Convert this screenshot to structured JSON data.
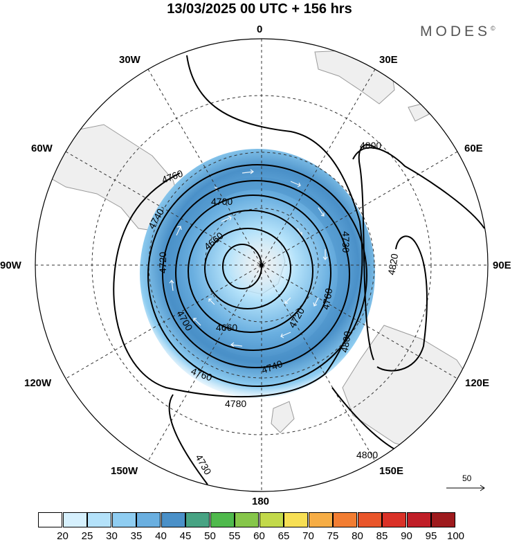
{
  "title": "13/03/2025  00 UTC  + 156 hrs",
  "brand": "MODES",
  "brand_mark": "©",
  "longitude_labels": [
    "0",
    "30E",
    "60E",
    "90E",
    "120E",
    "150E",
    "180",
    "150W",
    "120W",
    "90W",
    "60W",
    "30W"
  ],
  "contour_labels": [
    "4660",
    "4660",
    "4700",
    "4700",
    "4720",
    "4720",
    "4730",
    "4730",
    "4740",
    "4740",
    "4760",
    "4760",
    "4760",
    "4780",
    "4800",
    "4800",
    "4800",
    "4820"
  ],
  "wind_reference": "50",
  "colorbar": {
    "labels": [
      "20",
      "25",
      "30",
      "35",
      "40",
      "45",
      "50",
      "55",
      "60",
      "65",
      "70",
      "75",
      "80",
      "85",
      "90",
      "95",
      "100"
    ],
    "colors": [
      "#ffffff",
      "#d6f0fd",
      "#b4e2fa",
      "#8fcdf1",
      "#6aafe0",
      "#4a90c8",
      "#47a383",
      "#4fb94c",
      "#86c64a",
      "#c2d94a",
      "#f7df54",
      "#f6ad45",
      "#f27d32",
      "#e9552a",
      "#da3127",
      "#c01e27",
      "#9e1a1d"
    ]
  },
  "palette": {
    "land": "#efefef",
    "coast": "#9a9a9a",
    "contour": "#000000",
    "arrow": "#ffffff"
  }
}
